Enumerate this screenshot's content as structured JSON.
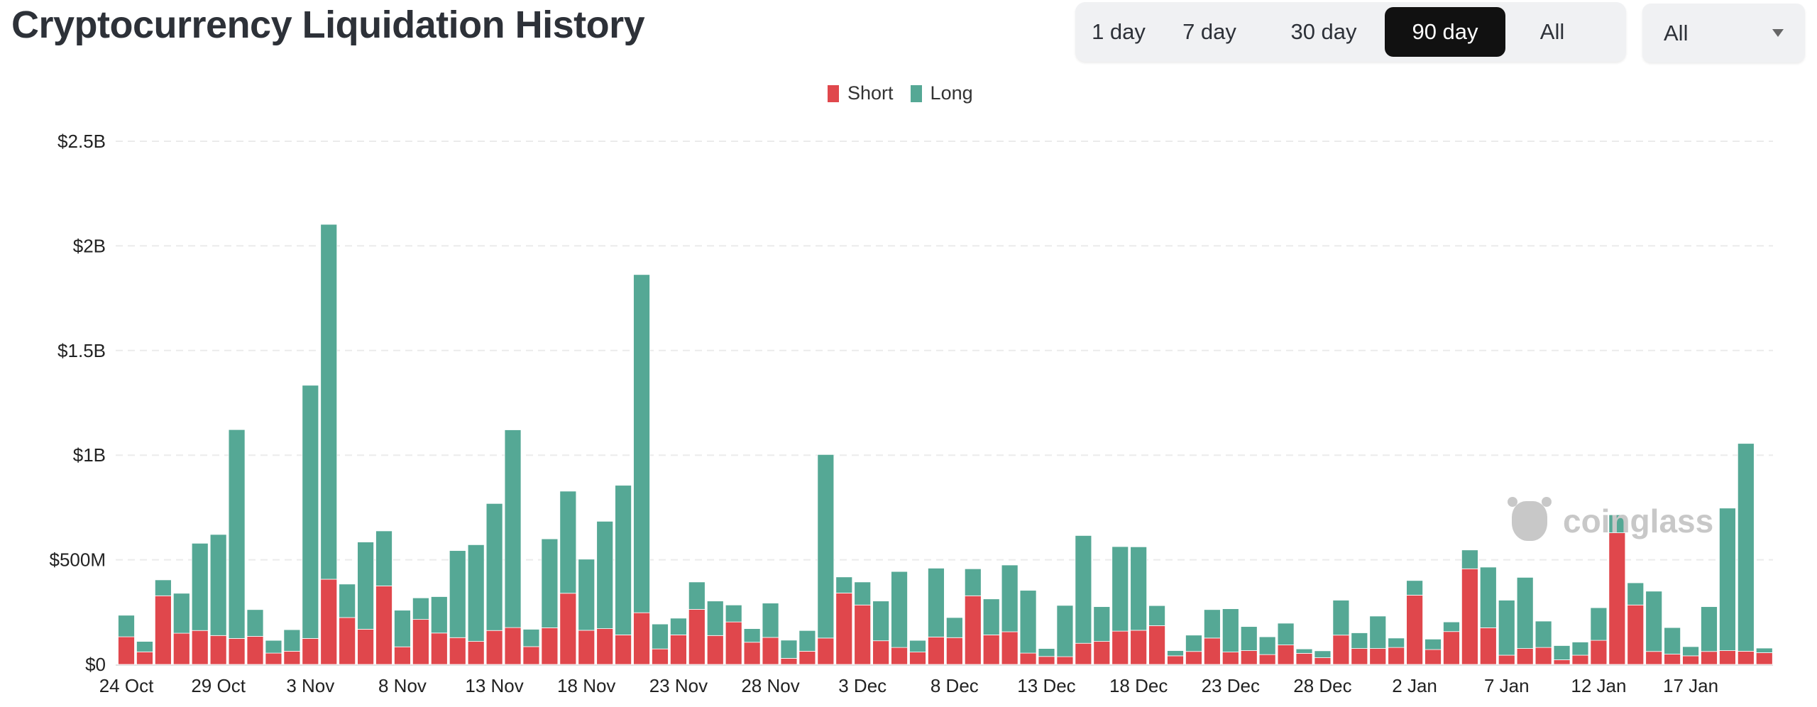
{
  "header": {
    "title": "Cryptocurrency Liquidation History"
  },
  "range_tabs": [
    {
      "label": "1 day",
      "active": false
    },
    {
      "label": "7 day",
      "active": false
    },
    {
      "label": "30 day",
      "active": false
    },
    {
      "label": "90 day",
      "active": true
    },
    {
      "label": "All",
      "active": false
    }
  ],
  "coin_select": {
    "value": "All"
  },
  "watermark": "coinglass",
  "chart_data": {
    "type": "bar",
    "stacked": true,
    "title": "",
    "xlabel": "",
    "ylabel": "",
    "ylim": [
      0,
      2500
    ],
    "y_unit": "USD millions",
    "y_tick_values": [
      0,
      500,
      1000,
      1500,
      2000,
      2500
    ],
    "y_tick_labels": [
      "$0",
      "$500M",
      "$1B",
      "$1.5B",
      "$2B",
      "$2.5B"
    ],
    "x_tick_labels": [
      "24 Oct",
      "29 Oct",
      "3 Nov",
      "8 Nov",
      "13 Nov",
      "18 Nov",
      "23 Nov",
      "28 Nov",
      "3 Dec",
      "8 Dec",
      "13 Dec",
      "18 Dec",
      "23 Dec",
      "28 Dec",
      "2 Jan",
      "7 Jan",
      "12 Jan",
      "17 Jan"
    ],
    "x_tick_every": 5,
    "grid": true,
    "legend_position": "top-center",
    "colors": {
      "Short": "#e0474c",
      "Long": "#55a895"
    },
    "series": [
      {
        "name": "Short",
        "values": [
          132,
          60,
          328,
          149,
          162,
          138,
          124,
          134,
          54,
          63,
          124,
          407,
          224,
          168,
          375,
          84,
          215,
          150,
          128,
          110,
          162,
          176,
          85,
          175,
          340,
          163,
          171,
          141,
          247,
          74,
          141,
          263,
          138,
          203,
          106,
          129,
          29,
          63,
          126,
          341,
          284,
          113,
          81,
          59,
          131,
          128,
          328,
          141,
          156,
          54,
          38,
          37,
          101,
          110,
          159,
          163,
          185,
          41,
          62,
          126,
          59,
          66,
          47,
          93,
          53,
          32,
          140,
          76,
          76,
          81,
          331,
          71,
          157,
          457,
          175,
          44,
          76,
          81,
          22,
          44,
          115,
          629,
          284,
          62,
          49,
          41,
          62,
          66,
          63,
          56
        ]
      },
      {
        "name": "Long",
        "values": [
          103,
          50,
          76,
          191,
          417,
          483,
          998,
          128,
          61,
          103,
          1210,
          1696,
          160,
          417,
          263,
          175,
          103,
          174,
          416,
          462,
          607,
          945,
          83,
          425,
          488,
          340,
          513,
          715,
          1616,
          119,
          80,
          131,
          165,
          81,
          65,
          164,
          87,
          99,
          877,
          77,
          110,
          190,
          363,
          56,
          329,
          96,
          129,
          172,
          319,
          300,
          38,
          245,
          515,
          166,
          404,
          399,
          96,
          25,
          78,
          136,
          207,
          115,
          85,
          104,
          21,
          33,
          167,
          75,
          155,
          45,
          70,
          50,
          46,
          90,
          290,
          263,
          340,
          126,
          68,
          63,
          156,
          86,
          106,
          288,
          127,
          44,
          214,
          681,
          993,
          22
        ]
      }
    ]
  }
}
